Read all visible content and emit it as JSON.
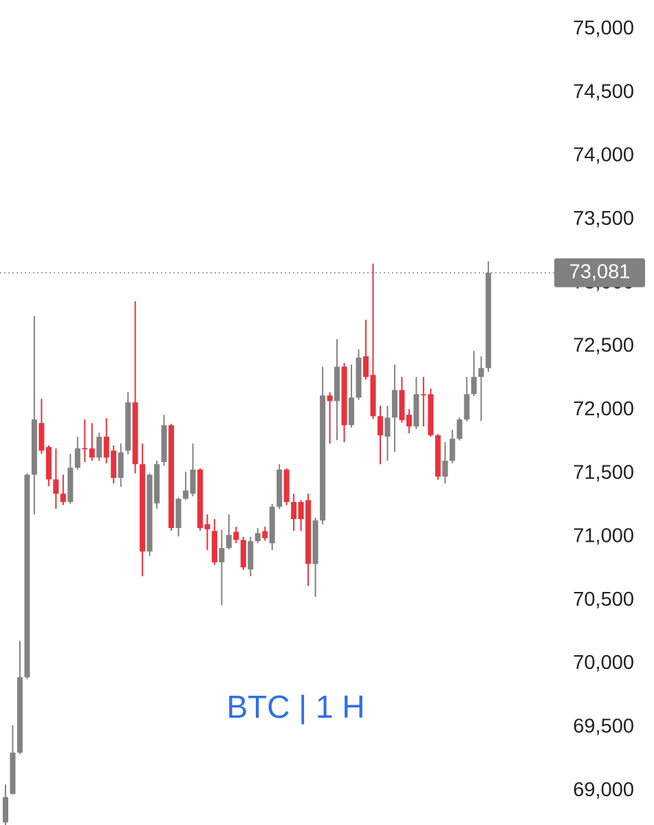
{
  "chart_data": {
    "type": "candlestick",
    "title": "BTC | 1 H",
    "up_color": "#828282",
    "down_color": "#e8323c",
    "open": [
      68750,
      68975,
      69300,
      69894,
      71490,
      71897,
      71708,
      71453,
      71340,
      71275,
      71545,
      71700,
      71697,
      71625,
      71789,
      71680,
      71465,
      71680,
      72060,
      71573,
      70885,
      71264,
      71590,
      71880,
      71070,
      71300,
      71340,
      71530,
      71100,
      71047,
      70800,
      70912,
      71040,
      70976,
      70744,
      70966,
      71045,
      70950,
      71237,
      71530,
      71275,
      71275,
      71290,
      70787,
      71130,
      72114,
      72070,
      72341,
      71880,
      72098,
      72423,
      72276,
      71951,
      71790,
      71940,
      72157,
      71962,
      71870,
      72124,
      72124,
      71800,
      71475,
      71600,
      71773,
      71925,
      72125,
      72260,
      72330
    ],
    "high": [
      69050,
      69515,
      70180,
      71500,
      72742,
      72087,
      71720,
      71697,
      71490,
      71654,
      71789,
      71925,
      71897,
      71820,
      71935,
      71720,
      71735,
      72141,
      72856,
      71735,
      71500,
      71600,
      71962,
      71890,
      71310,
      71513,
      71735,
      71540,
      71177,
      71140,
      71057,
      71177,
      71080,
      71000,
      71000,
      71070,
      71080,
      71260,
      71573,
      71540,
      71340,
      71290,
      71340,
      71150,
      72341,
      72140,
      72558,
      72370,
      72357,
      72477,
      72710,
      73153,
      72033,
      72033,
      72357,
      72260,
      72006,
      72260,
      72260,
      72168,
      71810,
      71746,
      71843,
      71940,
      72260,
      72466,
      72423,
      73170
    ],
    "low": [
      68700,
      68970,
      69290,
      69880,
      71177,
      71654,
      71400,
      71220,
      71250,
      71260,
      71530,
      71590,
      71600,
      71600,
      71580,
      71420,
      71394,
      71650,
      71500,
      70690,
      70850,
      71220,
      71560,
      71050,
      71004,
      71290,
      71320,
      71050,
      70895,
      70780,
      70462,
      70900,
      70950,
      70740,
      70690,
      70950,
      70970,
      70895,
      71220,
      71250,
      71047,
      71047,
      70614,
      70527,
      71100,
      71735,
      71762,
      71746,
      71860,
      72080,
      72240,
      71930,
      71573,
      71600,
      71670,
      71900,
      71816,
      71850,
      71870,
      71790,
      71450,
      71420,
      71580,
      71760,
      71910,
      72110,
      71913,
      72300
    ],
    "close": [
      68950,
      69300,
      69894,
      71490,
      71925,
      71680,
      71453,
      71340,
      71275,
      71545,
      71697,
      71690,
      71625,
      71789,
      71625,
      71465,
      71665,
      72060,
      71573,
      70885,
      71490,
      71573,
      71880,
      71070,
      71300,
      71366,
      71530,
      71070,
      71060,
      70800,
      70912,
      71015,
      70976,
      70760,
      70966,
      71030,
      70990,
      71237,
      71530,
      71275,
      71140,
      71140,
      70787,
      71130,
      72114,
      72070,
      72341,
      71880,
      72098,
      72412,
      72260,
      71951,
      71800,
      71940,
      72157,
      71920,
      71870,
      72124,
      72115,
      71800,
      71475,
      71600,
      71773,
      71925,
      72125,
      72260,
      72330,
      73081
    ],
    "ylim": [
      68730,
      75230
    ],
    "yticks": [
      {
        "value": 69000,
        "label": "69,000"
      },
      {
        "value": 69500,
        "label": "69,500"
      },
      {
        "value": 70000,
        "label": "70,000"
      },
      {
        "value": 70500,
        "label": "70,500"
      },
      {
        "value": 71000,
        "label": "71,000"
      },
      {
        "value": 71500,
        "label": "71,500"
      },
      {
        "value": 72000,
        "label": "72,000"
      },
      {
        "value": 72500,
        "label": "72,500"
      },
      {
        "value": 73000,
        "label": "73,000"
      },
      {
        "value": 73500,
        "label": "73,500"
      },
      {
        "value": 74000,
        "label": "74,000"
      },
      {
        "value": 74500,
        "label": "74,500"
      },
      {
        "value": 75000,
        "label": "75,000"
      }
    ],
    "current_price": {
      "value": 73081,
      "label": "73,081"
    },
    "current_price_color": "#808080"
  }
}
